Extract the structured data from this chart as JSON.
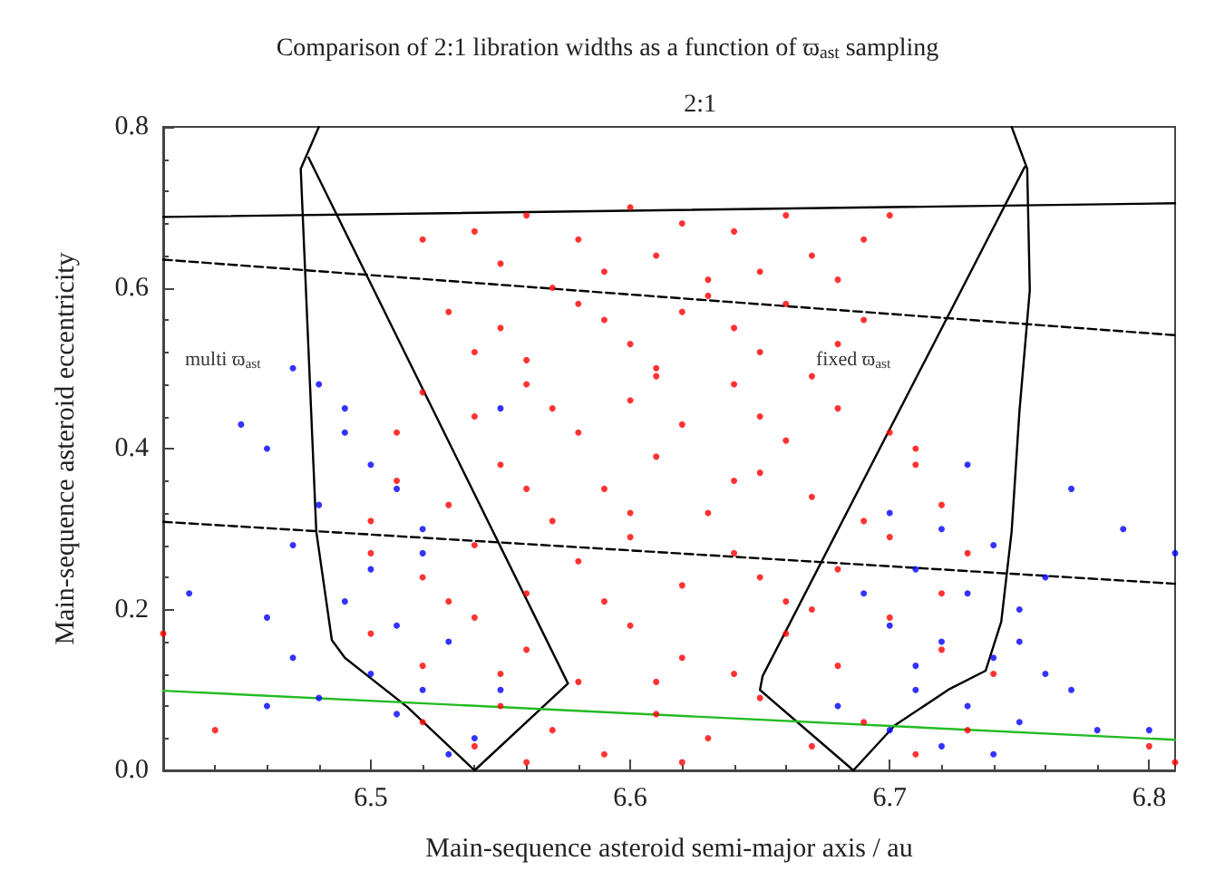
{
  "chart_data": {
    "type": "scatter",
    "title": "Comparison of 2:1 libration widths as a function of ϖ$_{ast}$ sampling",
    "subtitle": "2:1",
    "xlabel": "Main-sequence asteroid semi-major axis / au",
    "ylabel": "Main-sequence asteroid eccentricity",
    "xlim": [
      6.42,
      6.81
    ],
    "xticks": [
      6.5,
      6.6,
      6.7,
      6.8
    ],
    "ylim": [
      0,
      0.8
    ],
    "yticks": [
      {
        "value": 0,
        "label": "0.0"
      },
      0.2,
      0.4,
      0.6,
      0.8
    ],
    "grid": false,
    "annotations": [
      "multi ϖ$_{ast}$",
      "fixed ϖ$_{ast}$"
    ],
    "series": [
      {
        "marker": "circle",
        "color": "#ff0000",
        "x": [
          6.54,
          6.56,
          6.58,
          6.6,
          6.62,
          6.64,
          6.66,
          6.55,
          6.59,
          6.63,
          6.67,
          6.69,
          6.57,
          6.61,
          6.65,
          6.52,
          6.7,
          6.68,
          6.53,
          6.55,
          6.58,
          6.6,
          6.62,
          6.64,
          6.66,
          6.68,
          6.56,
          6.61,
          6.65,
          6.69,
          6.54,
          6.59,
          6.63,
          6.52,
          6.54,
          6.56,
          6.58,
          6.6,
          6.62,
          6.64,
          6.66,
          6.68,
          6.7,
          6.57,
          6.61,
          6.65,
          6.67,
          6.51,
          6.71,
          6.51,
          6.53,
          6.55,
          6.57,
          6.59,
          6.61,
          6.63,
          6.65,
          6.67,
          6.69,
          6.71,
          6.72,
          6.56,
          6.6,
          6.64,
          6.5,
          6.5,
          6.52,
          6.54,
          6.56,
          6.58,
          6.6,
          6.62,
          6.64,
          6.66,
          6.68,
          6.7,
          6.72,
          6.73,
          6.53,
          6.59,
          6.65,
          6.5,
          6.52,
          6.54,
          6.56,
          6.58,
          6.6,
          6.62,
          6.64,
          6.66,
          6.68,
          6.7,
          6.72,
          6.55,
          6.61,
          6.67,
          6.74,
          6.52,
          6.54,
          6.55,
          6.57,
          6.59,
          6.61,
          6.63,
          6.65,
          6.67,
          6.69,
          6.71,
          6.73,
          6.56,
          6.62,
          6.8,
          6.81,
          6.44,
          6.42
        ],
        "values": [
          0.67,
          0.69,
          0.66,
          0.7,
          0.68,
          0.67,
          0.69,
          0.63,
          0.62,
          0.61,
          0.64,
          0.66,
          0.6,
          0.64,
          0.62,
          0.66,
          0.69,
          0.61,
          0.57,
          0.55,
          0.58,
          0.53,
          0.57,
          0.55,
          0.58,
          0.53,
          0.51,
          0.5,
          0.52,
          0.56,
          0.52,
          0.56,
          0.59,
          0.47,
          0.44,
          0.48,
          0.42,
          0.46,
          0.43,
          0.48,
          0.41,
          0.45,
          0.42,
          0.45,
          0.49,
          0.44,
          0.49,
          0.42,
          0.4,
          0.36,
          0.33,
          0.38,
          0.31,
          0.35,
          0.39,
          0.32,
          0.37,
          0.34,
          0.31,
          0.38,
          0.33,
          0.35,
          0.32,
          0.36,
          0.31,
          0.27,
          0.24,
          0.28,
          0.22,
          0.26,
          0.29,
          0.23,
          0.27,
          0.21,
          0.25,
          0.29,
          0.22,
          0.27,
          0.21,
          0.21,
          0.24,
          0.17,
          0.13,
          0.19,
          0.15,
          0.11,
          0.18,
          0.14,
          0.12,
          0.17,
          0.13,
          0.19,
          0.15,
          0.12,
          0.11,
          0.2,
          0.12,
          0.06,
          0.03,
          0.08,
          0.05,
          0.02,
          0.07,
          0.04,
          0.09,
          0.03,
          0.06,
          0.02,
          0.05,
          0.01,
          0.01,
          0.03,
          0.01,
          0.05,
          0.17
        ]
      },
      {
        "marker": "circle",
        "color": "#0000ff",
        "x": [
          6.47,
          6.48,
          6.46,
          6.49,
          6.5,
          6.51,
          6.48,
          6.52,
          6.47,
          6.5,
          6.49,
          6.46,
          6.51,
          6.53,
          6.47,
          6.5,
          6.52,
          6.48,
          6.51,
          6.54,
          6.53,
          6.45,
          6.43,
          6.49,
          6.55,
          6.52,
          6.46,
          6.55,
          6.7,
          6.72,
          6.74,
          6.71,
          6.73,
          6.75,
          6.7,
          6.72,
          6.74,
          6.76,
          6.71,
          6.73,
          6.75,
          6.7,
          6.72,
          6.74,
          6.77,
          6.78,
          6.76,
          6.73,
          6.77,
          6.79,
          6.8,
          6.69,
          6.71,
          6.75,
          6.68,
          6.81
        ],
        "values": [
          0.5,
          0.48,
          0.4,
          0.42,
          0.38,
          0.35,
          0.33,
          0.3,
          0.28,
          0.25,
          0.21,
          0.19,
          0.18,
          0.16,
          0.14,
          0.12,
          0.1,
          0.09,
          0.07,
          0.04,
          0.02,
          0.43,
          0.22,
          0.45,
          0.45,
          0.27,
          0.08,
          0.1,
          0.32,
          0.3,
          0.28,
          0.25,
          0.22,
          0.2,
          0.18,
          0.16,
          0.14,
          0.12,
          0.1,
          0.08,
          0.06,
          0.05,
          0.03,
          0.02,
          0.1,
          0.05,
          0.24,
          0.38,
          0.35,
          0.3,
          0.05,
          0.22,
          0.13,
          0.16,
          0.08,
          0.27
        ]
      },
      {
        "type": "line",
        "marker": "none",
        "color": "#000000",
        "x": [
          6.48,
          6.473,
          6.476,
          6.479,
          6.485,
          6.49,
          6.499,
          6.514,
          6.54
        ],
        "values": [
          0.8,
          0.748,
          0.523,
          0.297,
          0.162,
          0.14,
          0.117,
          0.079,
          0.0
        ]
      },
      {
        "type": "line",
        "marker": "none",
        "color": "#000000",
        "x": [
          6.476,
          6.576,
          6.54
        ],
        "values": [
          0.762,
          0.108,
          0.0
        ]
      },
      {
        "type": "line",
        "marker": "none",
        "color": "#000000",
        "x": [
          6.747,
          6.753,
          6.754,
          6.75,
          6.747,
          6.743,
          6.737,
          6.723,
          6.702,
          6.686
        ],
        "values": [
          0.8,
          0.748,
          0.597,
          0.446,
          0.297,
          0.185,
          0.124,
          0.101,
          0.056,
          0.0
        ]
      },
      {
        "type": "line",
        "marker": "none",
        "color": "#000000",
        "x": [
          6.752,
          6.651,
          6.65,
          6.686
        ],
        "values": [
          0.75,
          0.117,
          0.1,
          0.0
        ]
      },
      {
        "type": "line",
        "marker": "none",
        "color": "#000000",
        "line_style": "solid",
        "x": [
          6.42,
          6.81
        ],
        "values": [
          0.688,
          0.705
        ]
      },
      {
        "type": "line",
        "marker": "none",
        "color": "#000000",
        "line_style": "dashed",
        "x": [
          6.42,
          6.81
        ],
        "values": [
          0.635,
          0.541
        ]
      },
      {
        "type": "line",
        "marker": "none",
        "color": "#000000",
        "line_style": "dashed",
        "x": [
          6.42,
          6.81
        ],
        "values": [
          0.309,
          0.232
        ]
      },
      {
        "type": "line",
        "marker": "none",
        "color": "#22bb22",
        "line_style": "solid",
        "x": [
          6.42,
          6.81
        ],
        "values": [
          0.099,
          0.038
        ]
      }
    ]
  }
}
